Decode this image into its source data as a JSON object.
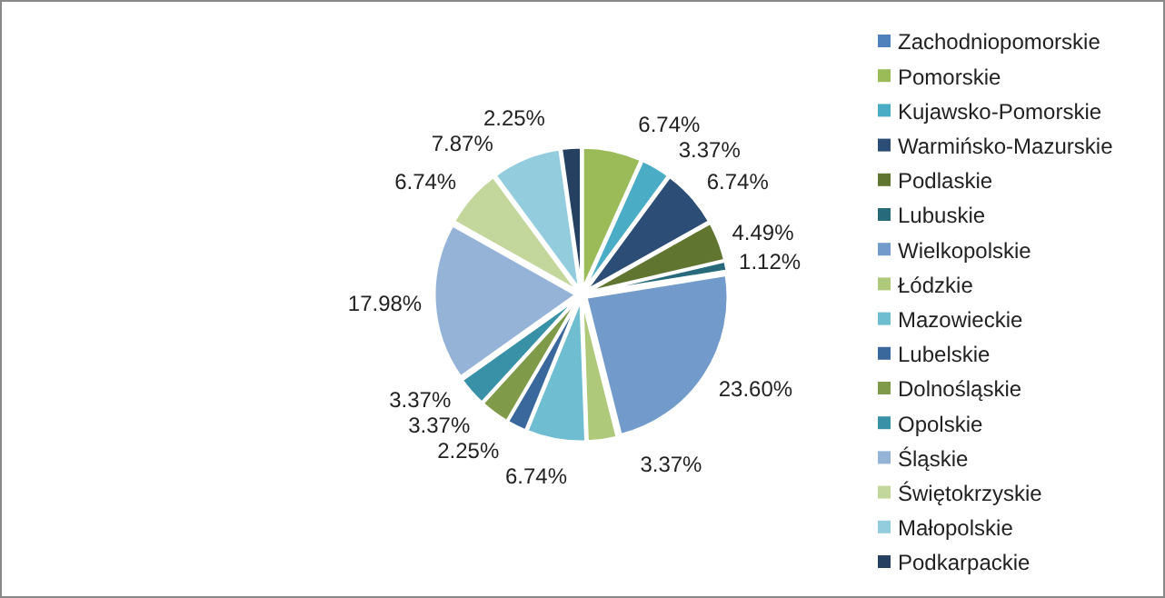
{
  "chart_data": {
    "type": "pie",
    "legend": "right",
    "categories": [
      "Zachodniopomorskie",
      "Pomorskie",
      "Kujawsko-Pomorskie",
      "Warmińsko-Mazurskie",
      "Podlaskie",
      "Lubuskie",
      "Wielkopolskie",
      "Łódzkie",
      "Mazowieckie",
      "Lubelskie",
      "Dolnośląskie",
      "Opolskie",
      "Śląskie",
      "Świętokrzyskie",
      "Małopolskie",
      "Podkarpackie"
    ],
    "values": [
      0,
      6.74,
      3.37,
      6.74,
      4.49,
      1.12,
      23.6,
      3.37,
      6.74,
      2.25,
      3.37,
      3.37,
      17.98,
      6.74,
      7.87,
      2.25
    ],
    "value_labels": [
      null,
      "6.74%",
      "3.37%",
      "6.74%",
      "4.49%",
      "1.12%",
      "23.60%",
      "3.37%",
      "6.74%",
      "2.25%",
      "3.37%",
      "3.37%",
      "17.98%",
      "6.74%",
      "7.87%",
      "2.25%"
    ],
    "colors": [
      "#4f81bd",
      "#9bbb59",
      "#4bacc6",
      "#2c4d75",
      "#5f7530",
      "#276a7c",
      "#729aca",
      "#afc97a",
      "#6fbdd1",
      "#3a679c",
      "#7f9a48",
      "#3891a7",
      "#95b3d7",
      "#c3d69b",
      "#93cddd",
      "#254061"
    ]
  }
}
